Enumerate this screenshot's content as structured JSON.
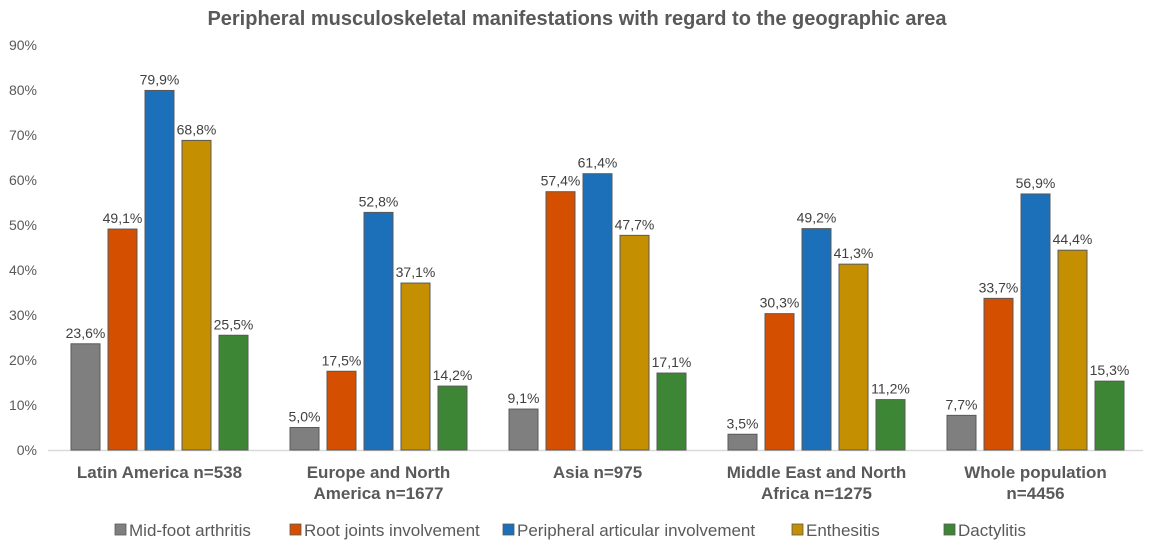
{
  "chart_data": {
    "type": "bar",
    "title": "Peripheral musculoskeletal manifestations with regard to the geographic area",
    "xlabel": "",
    "ylabel": "",
    "ylim": [
      0,
      90
    ],
    "yticks": [
      "0%",
      "10%",
      "20%",
      "30%",
      "40%",
      "50%",
      "60%",
      "70%",
      "80%",
      "90%"
    ],
    "grid": false,
    "legend_position": "bottom",
    "categories": [
      [
        "Latin America n=538"
      ],
      [
        "Europe and North",
        "America n=1677"
      ],
      [
        "Asia n=975"
      ],
      [
        "Middle East and North",
        "Africa n=1275"
      ],
      [
        "Whole population",
        "n=4456"
      ]
    ],
    "series": [
      {
        "name": "Mid-foot arthritis",
        "color": "#7f7f7f",
        "values": [
          23.6,
          5.0,
          9.1,
          3.5,
          7.7
        ],
        "labels": [
          "23,6%",
          "5,0%",
          "9,1%",
          "3,5%",
          "7,7%"
        ]
      },
      {
        "name": "Root joints involvement",
        "color": "#d45000",
        "values": [
          49.1,
          17.5,
          57.4,
          30.3,
          33.7
        ],
        "labels": [
          "49,1%",
          "17,5%",
          "57,4%",
          "30,3%",
          "33,7%"
        ]
      },
      {
        "name": "Peripheral articular involvement",
        "color": "#1b70b9",
        "values": [
          79.9,
          52.8,
          61.4,
          49.2,
          56.9
        ],
        "labels": [
          "79,9%",
          "52,8%",
          "61,4%",
          "49,2%",
          "56,9%"
        ]
      },
      {
        "name": "Enthesitis",
        "color": "#c48f00",
        "values": [
          68.8,
          37.1,
          47.7,
          41.3,
          44.4
        ],
        "labels": [
          "68,8%",
          "37,1%",
          "47,7%",
          "41,3%",
          "44,4%"
        ]
      },
      {
        "name": "Dactylitis",
        "color": "#3d8635",
        "values": [
          25.5,
          14.2,
          17.1,
          11.2,
          15.3
        ],
        "labels": [
          "25,5%",
          "14,2%",
          "17,1%",
          "11,2%",
          "15,3%"
        ]
      }
    ]
  }
}
